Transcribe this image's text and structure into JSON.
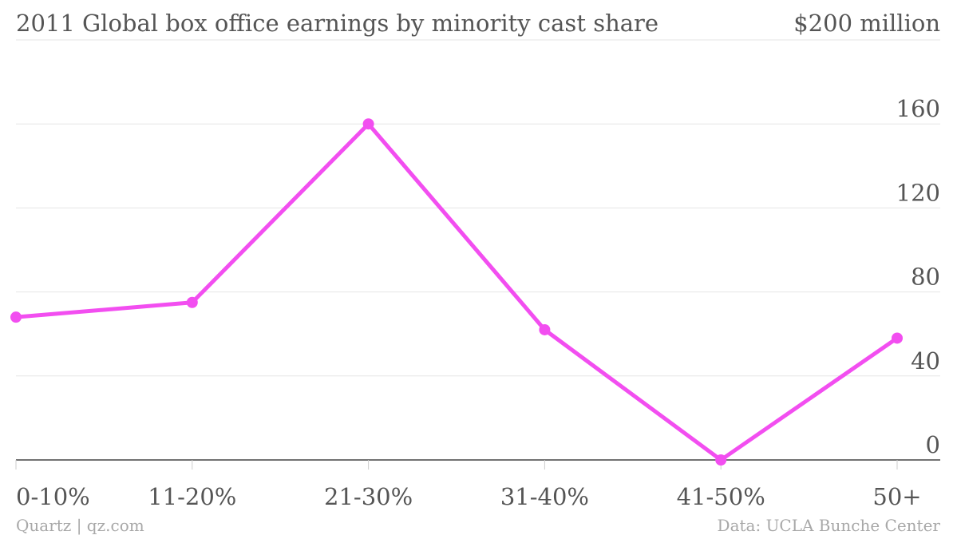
{
  "footer": {
    "source": "Quartz | qz.com",
    "data_credit": "Data: UCLA Bunche Center"
  },
  "chart_data": {
    "type": "line",
    "title": "2011 Global box office earnings by minority cast share",
    "unit_label": "$200 million",
    "xlabel": "",
    "ylabel": "",
    "categories": [
      "0-10%",
      "11-20%",
      "21-30%",
      "31-40%",
      "41-50%",
      "50+"
    ],
    "series": [
      {
        "values": [
          68,
          75,
          160,
          62,
          0,
          58
        ]
      }
    ],
    "ylim": [
      0,
      200
    ],
    "yticks": [
      0,
      40,
      80,
      120,
      160
    ],
    "grid": true,
    "legend": "none",
    "line_color": "#f24ef0",
    "grid_color": "#e6e6e6",
    "baseline_color": "#444444",
    "text_color": "#555555"
  }
}
